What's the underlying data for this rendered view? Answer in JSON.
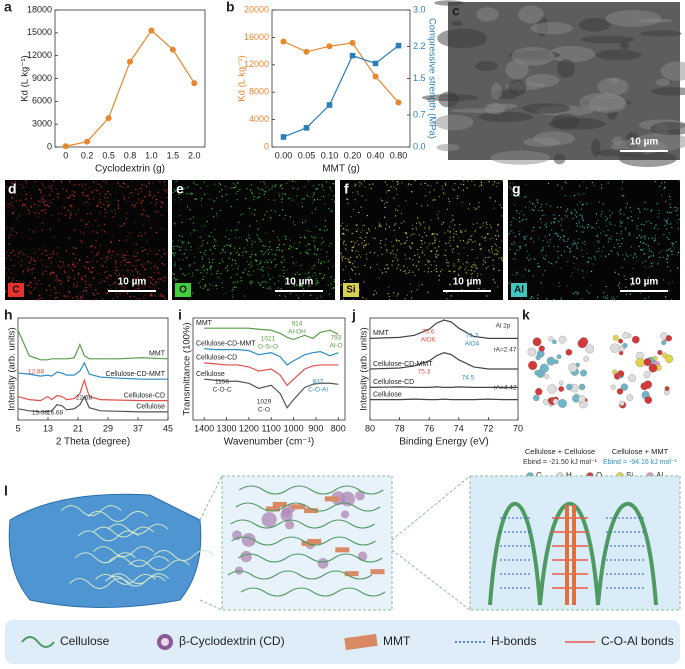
{
  "panel_labels": [
    "a",
    "b",
    "c",
    "d",
    "e",
    "f",
    "g",
    "h",
    "i",
    "j",
    "k",
    "l"
  ],
  "chart_data": [
    {
      "type": "line",
      "xlabel": "Cyclodextrin (g)",
      "ylabel": "Kd (L kg⁻¹)",
      "categories": [
        "0",
        "0.2",
        "0.5",
        "0.8",
        "1.0",
        "1.5",
        "2.0"
      ],
      "ylim": [
        0,
        18000
      ],
      "yticks": [
        0,
        3000,
        6000,
        9000,
        12000,
        15000,
        18000
      ],
      "series": [
        {
          "color": "#e8872b",
          "marker": "circle",
          "values": [
            100,
            700,
            3800,
            11200,
            15300,
            12800,
            8400
          ]
        }
      ]
    },
    {
      "type": "line",
      "xlabel": "MMT (g)",
      "ylabel": "Kd (L kg⁻¹)",
      "y2label": "Compressive strength (MPa)",
      "categories": [
        "0.00",
        "0.05",
        "0.10",
        "0.20",
        "0.40",
        "0.80"
      ],
      "ylim": [
        0,
        20000
      ],
      "yticks": [
        0,
        4000,
        8000,
        12000,
        16000,
        20000
      ],
      "y2lim": [
        0,
        3
      ],
      "y2ticks": [
        {
          "value": 0,
          "label": "0.0"
        },
        0.7,
        1.5,
        2.2,
        {
          "value": 3,
          "label": "3.0"
        }
      ],
      "series": [
        {
          "color": "#e8872b",
          "marker": "circle",
          "values": [
            15400,
            13900,
            14700,
            15200,
            10300,
            6500
          ]
        },
        {
          "color": "#2b7fb8",
          "marker": "square",
          "axis": "y2",
          "values": [
            0.22,
            0.42,
            0.92,
            2.0,
            1.83,
            2.22
          ]
        }
      ]
    },
    {
      "type": "line",
      "xlabel": "2 Theta (degree)",
      "ylabel": "Intensity (arb. units)",
      "x": [
        5,
        8,
        11,
        12.9,
        14,
        15.4,
        16.7,
        18,
        20,
        21.5,
        22.7,
        24,
        27,
        32,
        38,
        45
      ],
      "xlim": [
        5,
        45
      ],
      "xticks": [
        5,
        13,
        21,
        29,
        37,
        45
      ],
      "ylim": [
        0,
        10
      ],
      "series": [
        {
          "name": "MMT",
          "color": "#5a9e4b",
          "values": [
            8.8,
            6.3,
            5.9,
            5.9,
            6.0,
            6.0,
            6.0,
            6.0,
            6.1,
            7.4,
            6.3,
            6.0,
            6.0,
            6.0,
            6.1,
            6.0
          ]
        },
        {
          "name": "Cellulose-CD-MMT",
          "color": "#2f8fc4",
          "values": [
            4.6,
            4.5,
            4.3,
            4.4,
            4.3,
            4.7,
            4.6,
            4.4,
            4.4,
            4.8,
            5.6,
            4.5,
            4.2,
            4.1,
            4.0,
            4.0
          ]
        },
        {
          "name": "Cellulose-CD",
          "color": "#e2504a",
          "values": [
            2.3,
            2.0,
            1.9,
            2.3,
            2.0,
            2.4,
            2.3,
            2.0,
            2.1,
            2.6,
            3.9,
            2.3,
            2.0,
            1.95,
            1.9,
            1.9
          ]
        },
        {
          "name": "Cellulose",
          "color": "#555555",
          "values": [
            1.1,
            0.9,
            0.8,
            0.85,
            0.9,
            1.5,
            1.4,
            1.0,
            1.1,
            1.5,
            2.3,
            1.2,
            0.9,
            0.85,
            0.8,
            0.8
          ]
        }
      ],
      "annotations": [
        "12.88",
        "15.38",
        "16.68",
        "22.68"
      ]
    },
    {
      "type": "line",
      "xlabel": "Wavenumber (cm⁻¹)",
      "ylabel": "Transmittance (100%)",
      "x": [
        1400,
        1350,
        1300,
        1250,
        1200,
        1156,
        1100,
        1060,
        1029,
        1000,
        950,
        914,
        880,
        837,
        800
      ],
      "xlim": [
        1450,
        770
      ],
      "xticks": [
        1400,
        1300,
        1200,
        1100,
        1000,
        900,
        800
      ],
      "ylim": [
        0,
        10
      ],
      "series": [
        {
          "name": "MMT",
          "color": "#5a9e4b",
          "values": [
            9.0,
            9.0,
            9.0,
            9.0,
            9.0,
            8.9,
            8.8,
            8.5,
            8.1,
            7.9,
            8.3,
            8.0,
            8.6,
            8.8,
            8.4
          ]
        },
        {
          "name": "Cellulose-CD-MMT",
          "color": "#2f8fc4",
          "values": [
            7.0,
            6.9,
            6.9,
            6.9,
            6.8,
            6.4,
            6.6,
            6.2,
            5.4,
            5.8,
            6.4,
            6.6,
            6.7,
            6.3,
            6.6
          ]
        },
        {
          "name": "Cellulose-CD",
          "color": "#e2504a",
          "values": [
            5.6,
            5.5,
            5.4,
            5.4,
            5.2,
            4.8,
            5.0,
            4.4,
            3.4,
            4.0,
            5.0,
            5.3,
            5.4,
            5.4,
            5.4
          ]
        },
        {
          "name": "Cellulose",
          "color": "#555555",
          "values": [
            4.0,
            3.9,
            3.8,
            3.8,
            3.6,
            3.1,
            3.4,
            2.6,
            1.2,
            2.0,
            3.2,
            3.5,
            3.6,
            3.6,
            3.5
          ]
        }
      ],
      "annotations": [
        "914",
        "Al-OH",
        "1021",
        "O-Si-O",
        "793",
        "Al-O",
        "1156",
        "C-O-C",
        "1029",
        "C-O",
        "837",
        "C-O-Al"
      ]
    },
    {
      "type": "line",
      "xlabel": "Binding Energy (eV)",
      "ylabel": "Intensity (arb. units)",
      "x": [
        80,
        78,
        77,
        76,
        75.5,
        75,
        74.5,
        74,
        73,
        72,
        71,
        70
      ],
      "xlim": [
        80,
        70
      ],
      "xticks": [
        80,
        78,
        76,
        74,
        72,
        70
      ],
      "ylim": [
        0,
        10
      ],
      "series": [
        {
          "name": "MMT",
          "color": "#444444",
          "values": [
            8.0,
            8.1,
            8.3,
            8.9,
            9.5,
            9.8,
            9.6,
            9.0,
            8.2,
            8.0,
            8.0,
            8.0
          ]
        },
        {
          "name": "Cellulose-CD-MMT",
          "color": "#444444",
          "values": [
            5.0,
            5.1,
            5.3,
            5.8,
            6.3,
            6.6,
            6.4,
            5.9,
            5.2,
            5.0,
            5.0,
            5.0
          ]
        },
        {
          "name": "Cellulose-CD",
          "color": "#444444",
          "values": [
            3.2,
            3.25,
            3.2,
            3.2,
            3.25,
            3.2,
            3.2,
            3.25,
            3.2,
            3.2,
            3.2,
            3.2
          ]
        },
        {
          "name": "Cellulose",
          "color": "#444444",
          "values": [
            2.0,
            2.0,
            2.05,
            2.0,
            2.0,
            2.05,
            2.0,
            2.0,
            2.0,
            2.05,
            2.0,
            2.0
          ]
        }
      ],
      "annotations": [
        "Al 2p",
        "75.6",
        "AlO6",
        "74.2",
        "AlO4",
        "rA=2.47",
        "75.3",
        "74.5",
        "rA=4.42"
      ]
    }
  ],
  "micrographs": [
    {
      "scale_bar": "10 µm"
    },
    {
      "element": "C",
      "color": "#e8322e",
      "scale_bar": "10 µm"
    },
    {
      "element": "O",
      "color": "#3ecf3a",
      "scale_bar": "10 µm"
    },
    {
      "element": "Si",
      "color": "#d8d050",
      "scale_bar": "10 µm"
    },
    {
      "element": "Al",
      "color": "#40c8c0",
      "scale_bar": "10 µm"
    }
  ],
  "panel_k": {
    "structures": [
      {
        "name": "Cellulose + Cellulose",
        "energy": "Ebind = -21.50 kJ mol⁻¹"
      },
      {
        "name": "Cellulose + MMT",
        "energy": "Ebind = -94.16 kJ mol⁻¹"
      }
    ],
    "atoms": [
      {
        "symbol": "C",
        "color": "#6fb5c6"
      },
      {
        "symbol": "H",
        "color": "#dddddd"
      },
      {
        "symbol": "O",
        "color": "#d23a3a"
      },
      {
        "symbol": "Si",
        "color": "#e2d44a"
      },
      {
        "symbol": "Al",
        "color": "#d59ac8"
      }
    ]
  },
  "legend": [
    "Cellulose",
    "β-Cyclodextrin (CD)",
    "MMT",
    "H-bonds",
    "C-O-Al bonds"
  ]
}
